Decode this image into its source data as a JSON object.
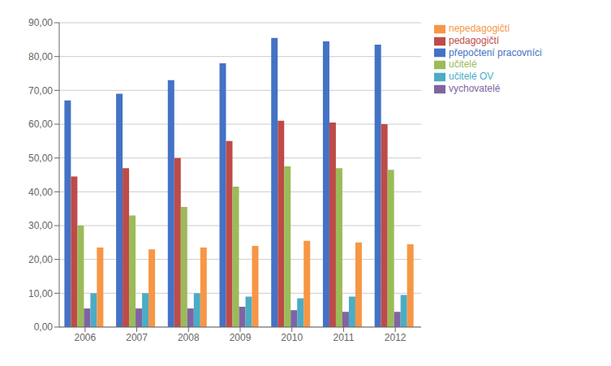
{
  "chart_data": {
    "type": "bar",
    "categories": [
      "2006",
      "2007",
      "2008",
      "2009",
      "2010",
      "2011",
      "2012"
    ],
    "series": [
      {
        "name": "přepočtení pracovníci",
        "color": "#4472C4",
        "values": [
          67.0,
          69.0,
          73.0,
          78.0,
          85.5,
          84.5,
          83.5
        ]
      },
      {
        "name": "pedagogičtí",
        "color": "#BE4B48",
        "values": [
          44.5,
          47.0,
          50.0,
          55.0,
          61.0,
          60.5,
          60.0
        ]
      },
      {
        "name": "učitelé",
        "color": "#9BBB59",
        "values": [
          30.0,
          33.0,
          35.5,
          41.5,
          47.5,
          47.0,
          46.5
        ]
      },
      {
        "name": "vychovatelé",
        "color": "#8064A2",
        "values": [
          5.5,
          5.5,
          5.5,
          6.0,
          5.0,
          4.5,
          4.5
        ]
      },
      {
        "name": "učitelé OV",
        "color": "#4BACC6",
        "values": [
          10.0,
          10.0,
          10.0,
          9.0,
          8.5,
          9.0,
          9.5
        ]
      },
      {
        "name": "nepedagogičtí",
        "color": "#F79646",
        "values": [
          23.5,
          23.0,
          23.5,
          24.0,
          25.5,
          25.0,
          24.5
        ]
      }
    ],
    "ylim": [
      0,
      90
    ],
    "yticks": [
      {
        "value": 0,
        "label": "0,00"
      },
      {
        "value": 10,
        "label": "10,00"
      },
      {
        "value": 20,
        "label": "20,00"
      },
      {
        "value": 30,
        "label": "30,00"
      },
      {
        "value": 40,
        "label": "40,00"
      },
      {
        "value": 50,
        "label": "50,00"
      },
      {
        "value": 60,
        "label": "60,00"
      },
      {
        "value": 70,
        "label": "70,00"
      },
      {
        "value": 80,
        "label": "80,00"
      },
      {
        "value": 90,
        "label": "90,00"
      }
    ],
    "grid": true,
    "legend": "right"
  }
}
